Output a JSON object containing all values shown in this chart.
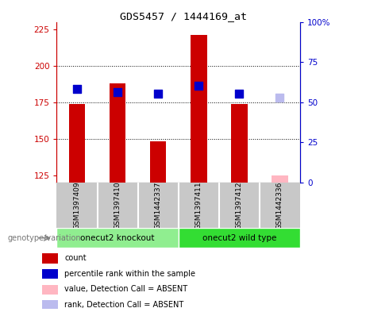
{
  "title": "GDS5457 / 1444169_at",
  "samples": [
    "GSM1397409",
    "GSM1397410",
    "GSM1442337",
    "GSM1397411",
    "GSM1397412",
    "GSM1442336"
  ],
  "groups": [
    {
      "label": "onecut2 knockout",
      "samples": [
        0,
        1,
        2
      ],
      "color": "#90EE90"
    },
    {
      "label": "onecut2 wild type",
      "samples": [
        3,
        4,
        5
      ],
      "color": "#33DD33"
    }
  ],
  "bar_values": [
    174,
    188,
    148,
    221,
    174,
    125
  ],
  "bar_absent": [
    false,
    false,
    false,
    false,
    false,
    true
  ],
  "rank_values": [
    184,
    182,
    181,
    186,
    181,
    178
  ],
  "rank_absent": [
    false,
    false,
    false,
    false,
    false,
    true
  ],
  "ylim_left": [
    120,
    230
  ],
  "ylim_right": [
    0,
    100
  ],
  "left_ticks": [
    125,
    150,
    175,
    200,
    225
  ],
  "right_ticks": [
    0,
    25,
    50,
    75,
    100
  ],
  "bar_color": "#CC0000",
  "bar_absent_color": "#FFB6C1",
  "rank_color": "#0000CC",
  "rank_absent_color": "#BBBBEE",
  "rank_marker_size": 45,
  "grid_color": "#000000",
  "plot_bg": "#FFFFFF",
  "sample_area_bg": "#C8C8C8",
  "left_axis_color": "#CC0000",
  "right_axis_color": "#0000CC",
  "xlabel": "genotype/variation",
  "legend_items": [
    {
      "label": "count",
      "color": "#CC0000"
    },
    {
      "label": "percentile rank within the sample",
      "color": "#0000CC"
    },
    {
      "label": "value, Detection Call = ABSENT",
      "color": "#FFB6C1"
    },
    {
      "label": "rank, Detection Call = ABSENT",
      "color": "#BBBBEE"
    }
  ]
}
